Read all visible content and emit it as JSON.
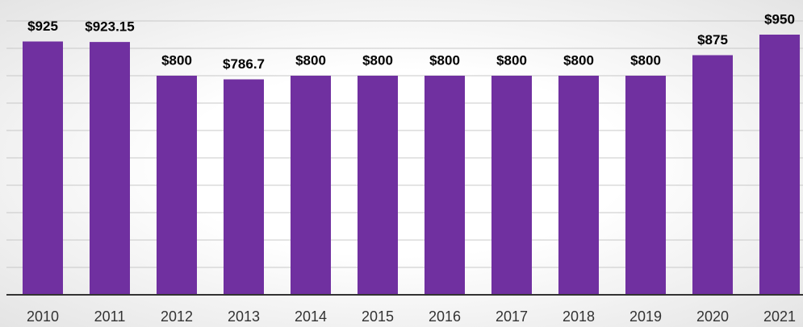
{
  "chart_data": {
    "type": "bar",
    "categories": [
      "2010",
      "2011",
      "2012",
      "2013",
      "2014",
      "2015",
      "2016",
      "2017",
      "2018",
      "2019",
      "2020",
      "2021"
    ],
    "values": [
      925,
      923.15,
      800,
      786.7,
      800,
      800,
      800,
      800,
      800,
      800,
      875,
      950
    ],
    "value_labels": [
      "$925",
      "$923.15",
      "$800",
      "$786.7",
      "$800",
      "$800",
      "$800",
      "$800",
      "$800",
      "$800",
      "$875",
      "$950"
    ],
    "color": "#7030a0",
    "ylim": [
      0,
      1000
    ],
    "yticks": [
      0,
      100,
      200,
      300,
      400,
      500,
      600,
      700,
      800,
      900,
      1000
    ],
    "grid": true
  }
}
